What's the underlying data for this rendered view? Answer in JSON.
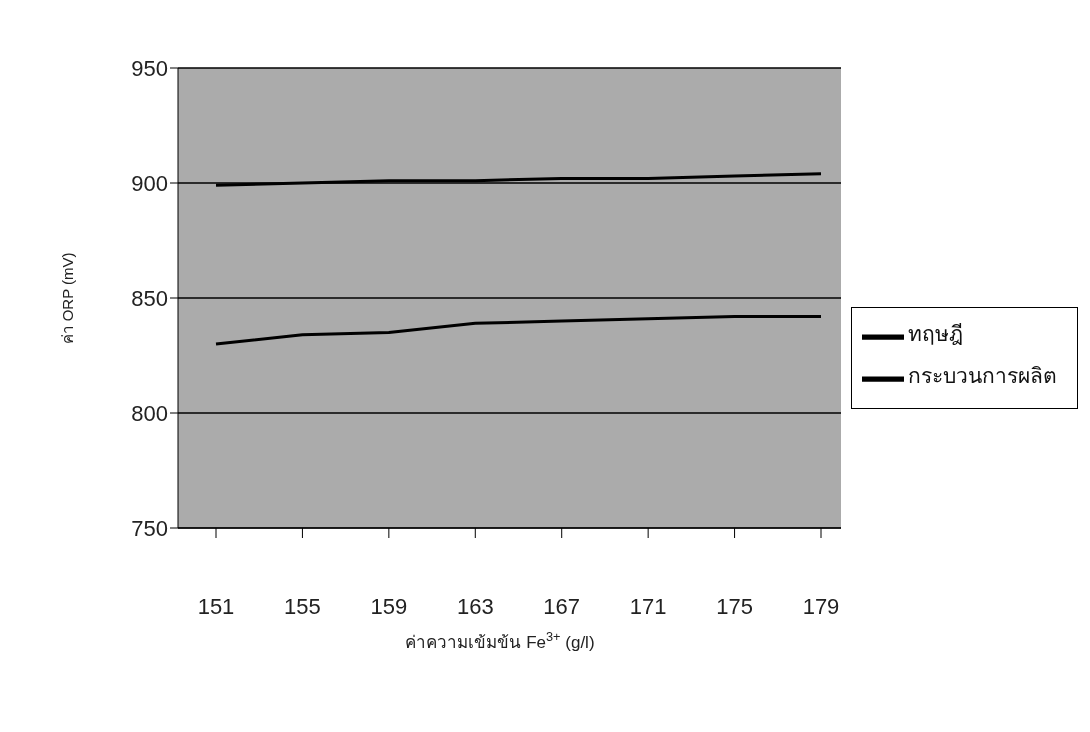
{
  "chart_data": {
    "type": "line",
    "xlabel": "ค่าความเข้มข้น Fe$^{3+}$ (g/l)",
    "ylabel": "ค่า ORP (mV)",
    "categories": [
      "151",
      "155",
      "159",
      "163",
      "167",
      "171",
      "175",
      "179"
    ],
    "series": [
      {
        "name": "ทฤษฎี",
        "color": "#000000",
        "values": [
          899,
          900,
          901,
          901,
          902,
          902,
          903,
          904
        ]
      },
      {
        "name": "กระบวนการผลิต",
        "color": "#000000",
        "values": [
          830,
          834,
          835,
          839,
          840,
          841,
          842,
          842
        ]
      }
    ],
    "ylim": [
      750,
      950
    ],
    "yticks": [
      750,
      800,
      850,
      900,
      950
    ],
    "grid": "y",
    "legend": "right",
    "marker": "none",
    "line_style": "solid"
  }
}
